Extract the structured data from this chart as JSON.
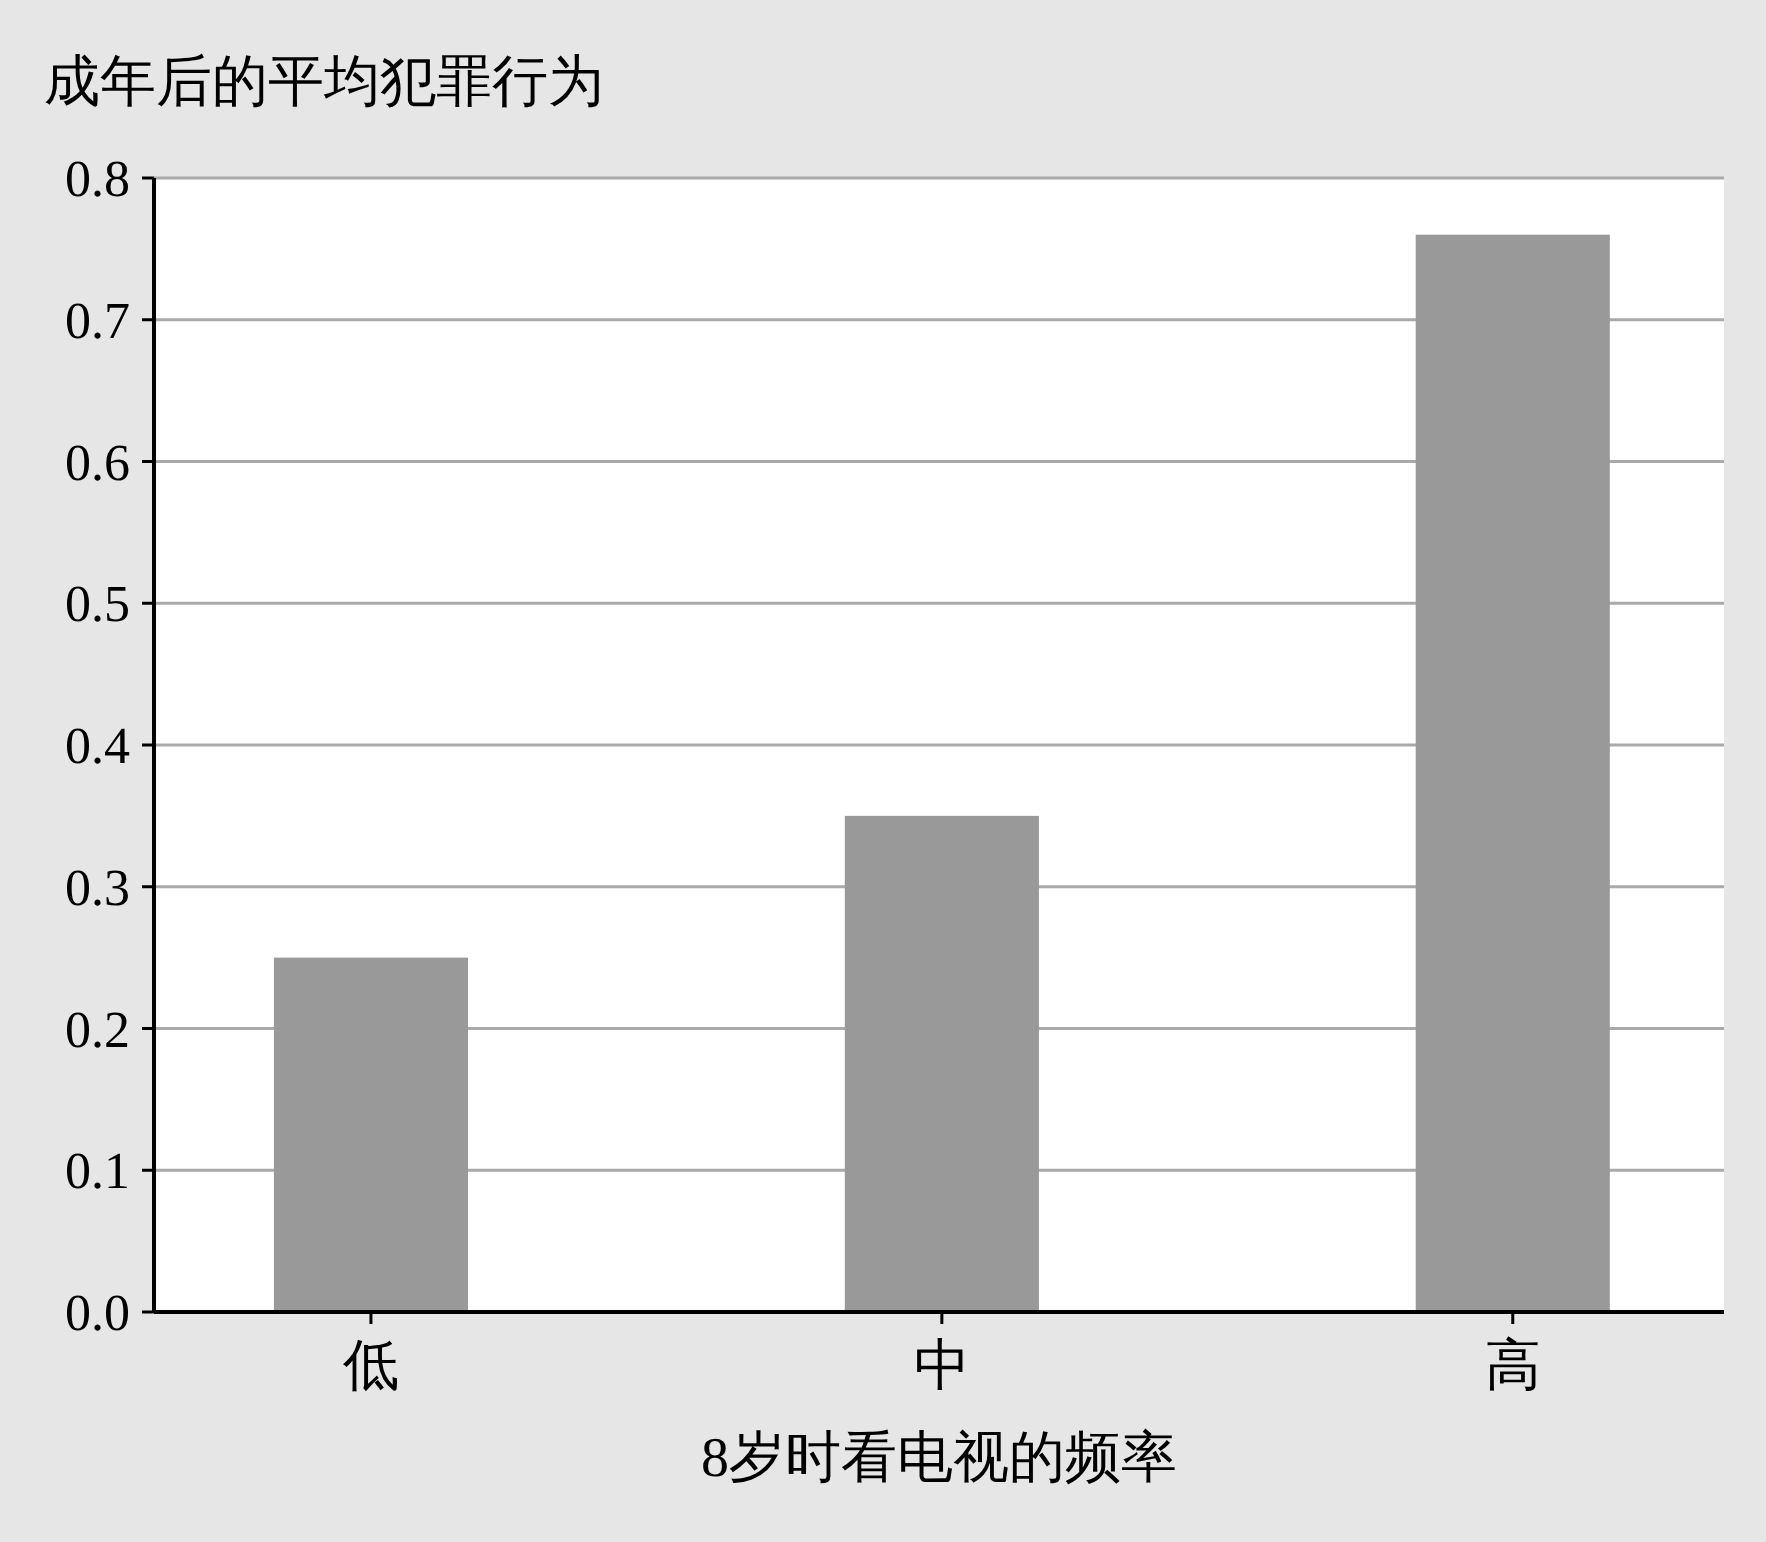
{
  "chart_data": {
    "type": "bar",
    "ylabel": "成年后的平均犯罪行为",
    "xlabel": "8岁时看电视的频率",
    "categories": [
      "低",
      "中",
      "高"
    ],
    "values": [
      0.25,
      0.35,
      0.76
    ],
    "color": "#999999",
    "ylim": [
      0,
      0.8
    ],
    "yticks": [
      {
        "value": 0,
        "label": "0.0"
      },
      0.1,
      0.2,
      0.3,
      0.4,
      0.5,
      0.6,
      0.7,
      0.8
    ],
    "grid": "y"
  }
}
